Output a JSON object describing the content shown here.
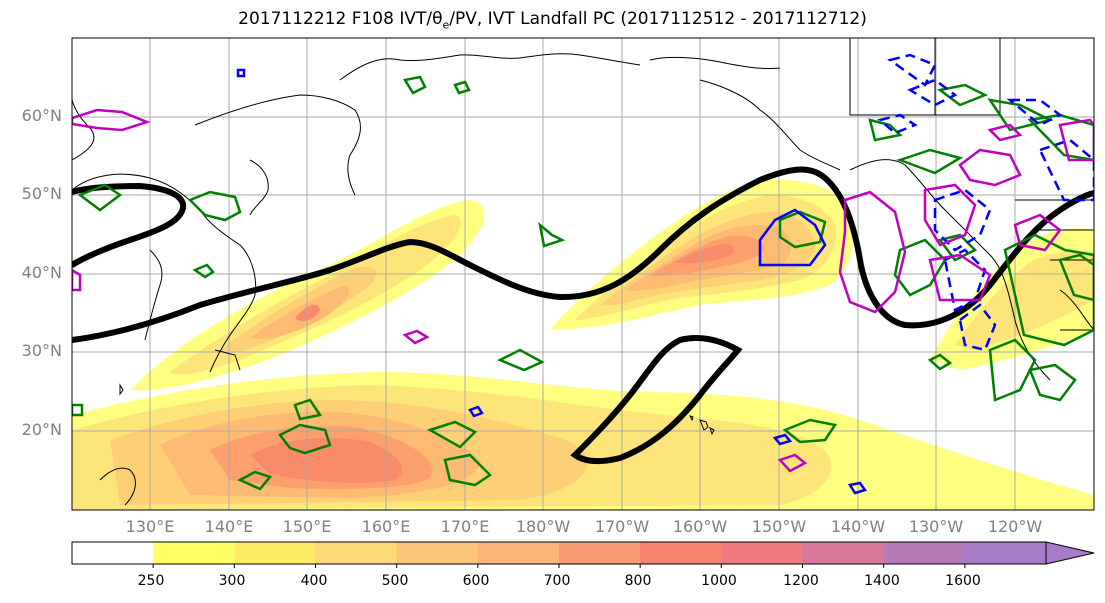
{
  "title": {
    "prefix": "2017112212 F108 IVT/",
    "theta_symbol": "θ",
    "theta_sub": "e",
    "suffix": "/PV, IVT Landfall PC (2017112512 - 2017112712)"
  },
  "map": {
    "lat_labels": [
      "60°N",
      "50°N",
      "40°N",
      "30°N",
      "20°N"
    ],
    "lon_labels": [
      "130°E",
      "140°E",
      "150°E",
      "160°E",
      "170°E",
      "180°W",
      "170°W",
      "160°W",
      "150°W",
      "140°W",
      "130°W",
      "120°W"
    ],
    "contour_colors": {
      "theta_e_pc": "#000000",
      "pv_positive": "#008000",
      "pv_negative": "#0000ff",
      "pv_magenta": "#c000c0"
    },
    "fill_colors": [
      "#ffff80",
      "#fee57a",
      "#fdd076",
      "#fcba72",
      "#fba06e",
      "#f98a6b",
      "#f37878",
      "#e0748c",
      "#c37aa8",
      "#a97fc4"
    ]
  },
  "colorbar": {
    "ticks": [
      "250",
      "300",
      "400",
      "500",
      "600",
      "700",
      "800",
      "1000",
      "1200",
      "1400",
      "1600"
    ],
    "colors": [
      "#ffffff",
      "#ffff66",
      "#ffec66",
      "#fdd978",
      "#fcc67a",
      "#fbb477",
      "#f99b72",
      "#f6836f",
      "#ee7a7f",
      "#d9779b",
      "#b77ab9",
      "#a87cc8"
    ]
  }
}
